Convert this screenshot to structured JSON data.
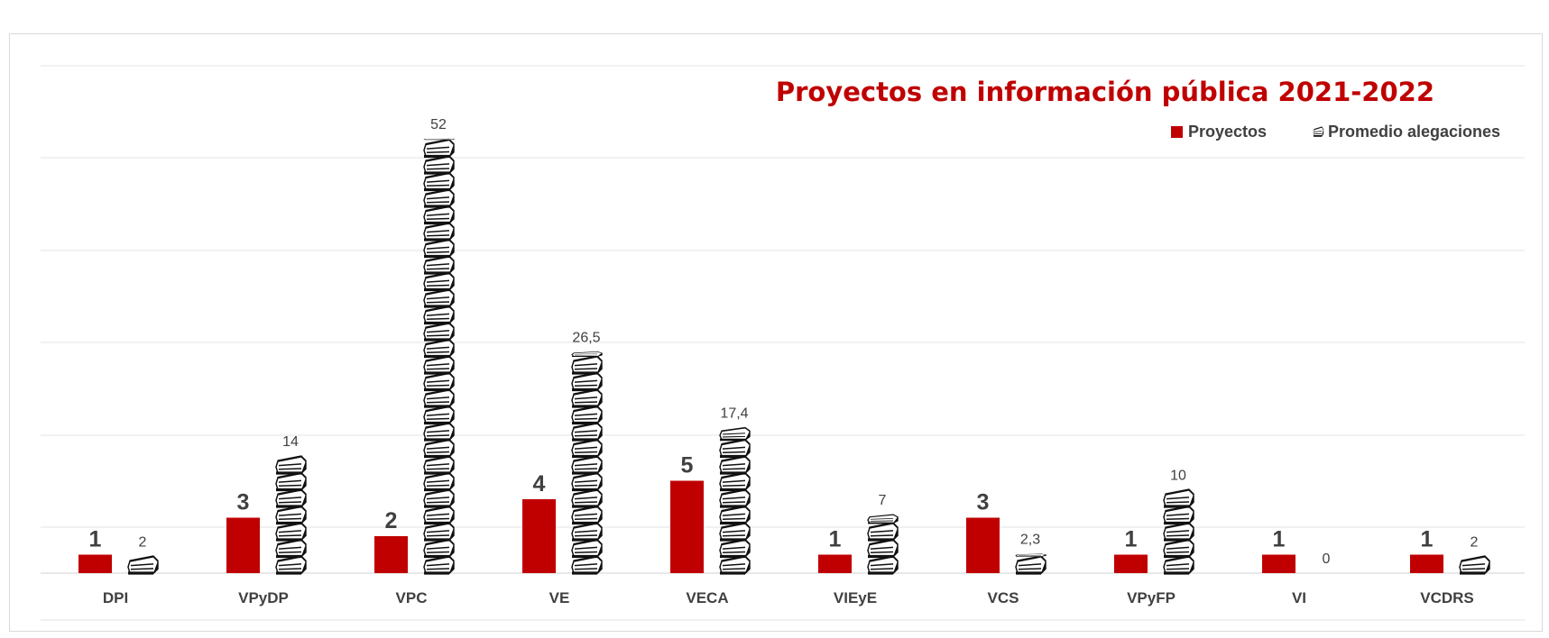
{
  "chart_data": {
    "type": "bar",
    "title": "Proyectos en información pública 2021-2022",
    "categories": [
      "DPI",
      "VPyDP",
      "VPC",
      "VE",
      "VECA",
      "VIEyE",
      "VCS",
      "VPyFP",
      "VI",
      "VCDRS"
    ],
    "series": [
      {
        "name": "Proyectos",
        "values": [
          1,
          3,
          2,
          4,
          5,
          1,
          3,
          1,
          1,
          1
        ],
        "labels": [
          "1",
          "3",
          "2",
          "4",
          "5",
          "1",
          "3",
          "1",
          "1",
          "1"
        ],
        "color": "#c00000"
      },
      {
        "name": "Promedio alegaciones",
        "values": [
          2,
          14,
          52,
          26.5,
          17.4,
          7,
          2.3,
          10,
          0,
          2
        ],
        "labels": [
          "2",
          "14",
          "52",
          "26,5",
          "17,4",
          "7",
          "2,3",
          "10",
          "0",
          "2"
        ],
        "color": "#1a1a1a",
        "marker": "stacked-books-icon"
      }
    ],
    "ylim": [
      0,
      55
    ],
    "grid": true,
    "legend_position": "top-right"
  }
}
